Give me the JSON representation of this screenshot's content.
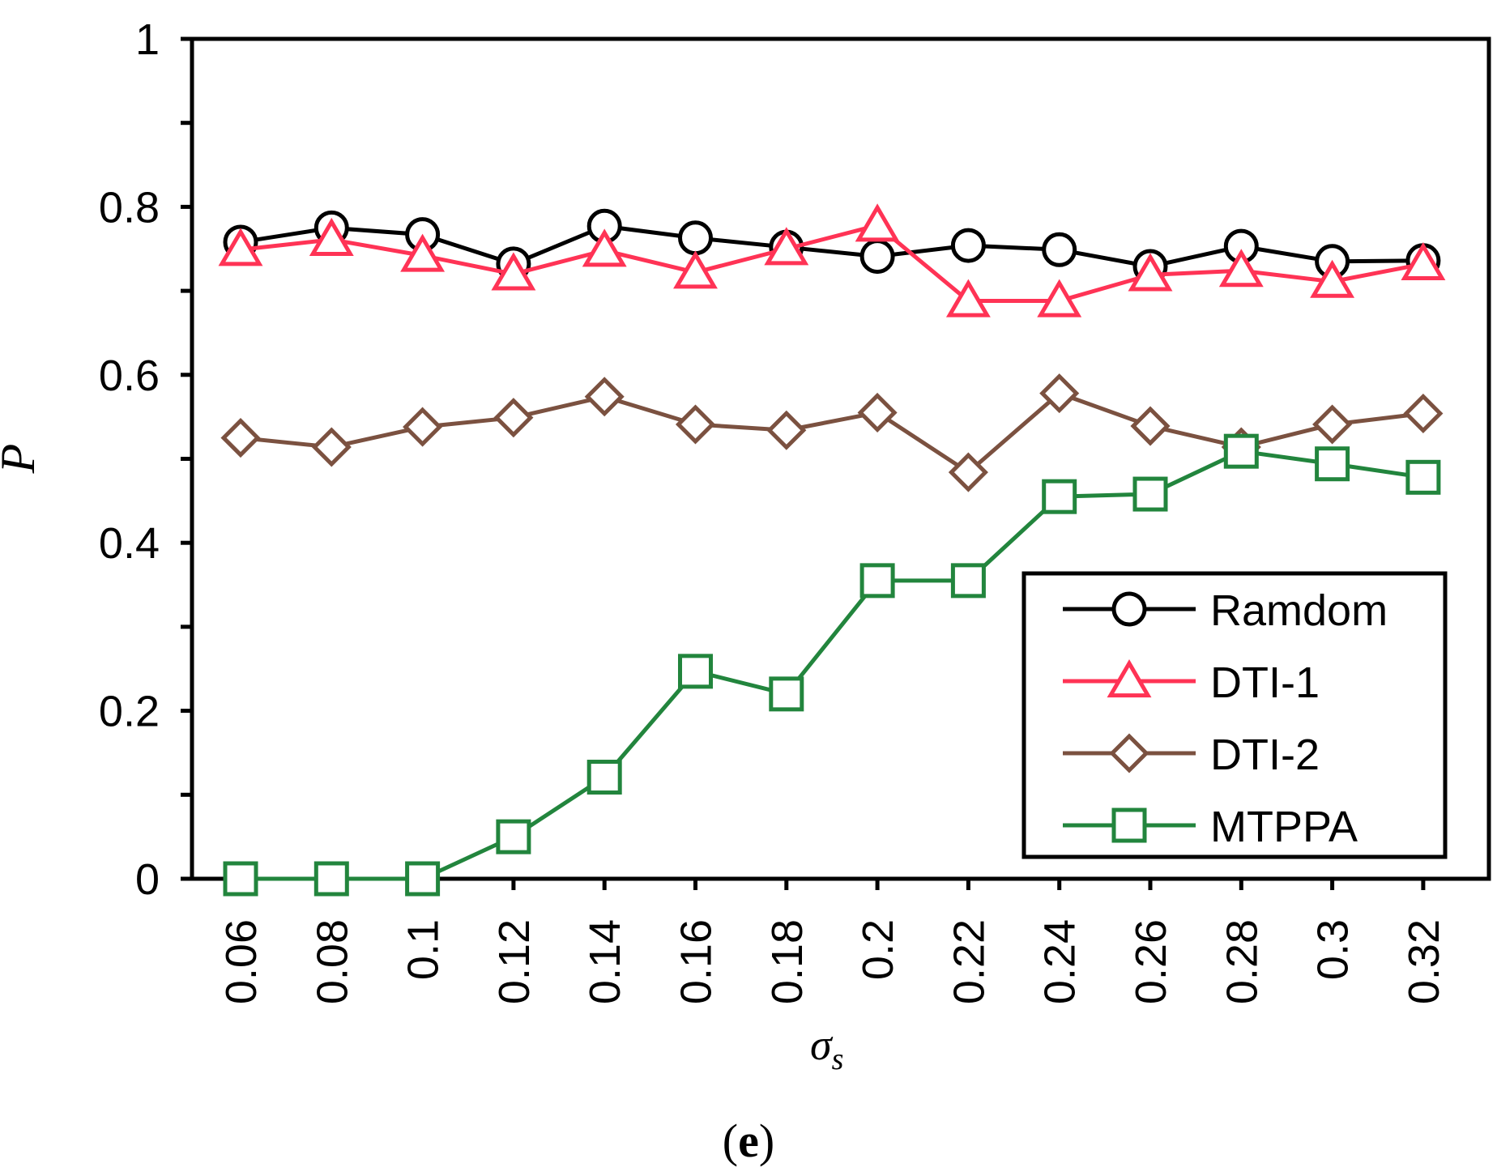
{
  "chart_data": {
    "type": "line",
    "title": "",
    "xlabel": "σ",
    "xlabel_sub": "s",
    "ylabel": "P",
    "panel_label": "e",
    "categories": [
      "0.06",
      "0.08",
      "0.1",
      "0.12",
      "0.14",
      "0.16",
      "0.18",
      "0.2",
      "0.22",
      "0.24",
      "0.26",
      "0.28",
      "0.3",
      "0.32"
    ],
    "ylim": [
      0,
      1
    ],
    "y_ticks": [
      "0",
      "0.2",
      "0.4",
      "0.6",
      "0.8",
      "1"
    ],
    "y_tick_values": [
      0,
      0.2,
      0.4,
      0.6,
      0.8,
      1
    ],
    "y_minor_ticks": [
      0.1,
      0.3,
      0.5,
      0.7,
      0.9
    ],
    "grid": false,
    "legend_position": "bottom-right",
    "series": [
      {
        "name": "Ramdom",
        "color": "#000000",
        "marker": "circle",
        "values": [
          0.758,
          0.775,
          0.767,
          0.732,
          0.777,
          0.763,
          0.752,
          0.741,
          0.754,
          0.749,
          0.729,
          0.753,
          0.735,
          0.736
        ]
      },
      {
        "name": "DTI-1",
        "color": "#ff3355",
        "marker": "triangle",
        "values": [
          0.749,
          0.761,
          0.742,
          0.72,
          0.748,
          0.722,
          0.75,
          0.778,
          0.688,
          0.688,
          0.719,
          0.724,
          0.711,
          0.732
        ]
      },
      {
        "name": "DTI-2",
        "color": "#7b5140",
        "marker": "diamond",
        "values": [
          0.525,
          0.514,
          0.538,
          0.549,
          0.574,
          0.541,
          0.534,
          0.555,
          0.484,
          0.578,
          0.539,
          0.514,
          0.541,
          0.554
        ]
      },
      {
        "name": "MTPPA",
        "color": "#22853d",
        "marker": "square",
        "values": [
          0.0,
          0.0,
          0.0,
          0.05,
          0.121,
          0.247,
          0.22,
          0.355,
          0.355,
          0.455,
          0.458,
          0.509,
          0.494,
          0.478
        ]
      }
    ]
  }
}
